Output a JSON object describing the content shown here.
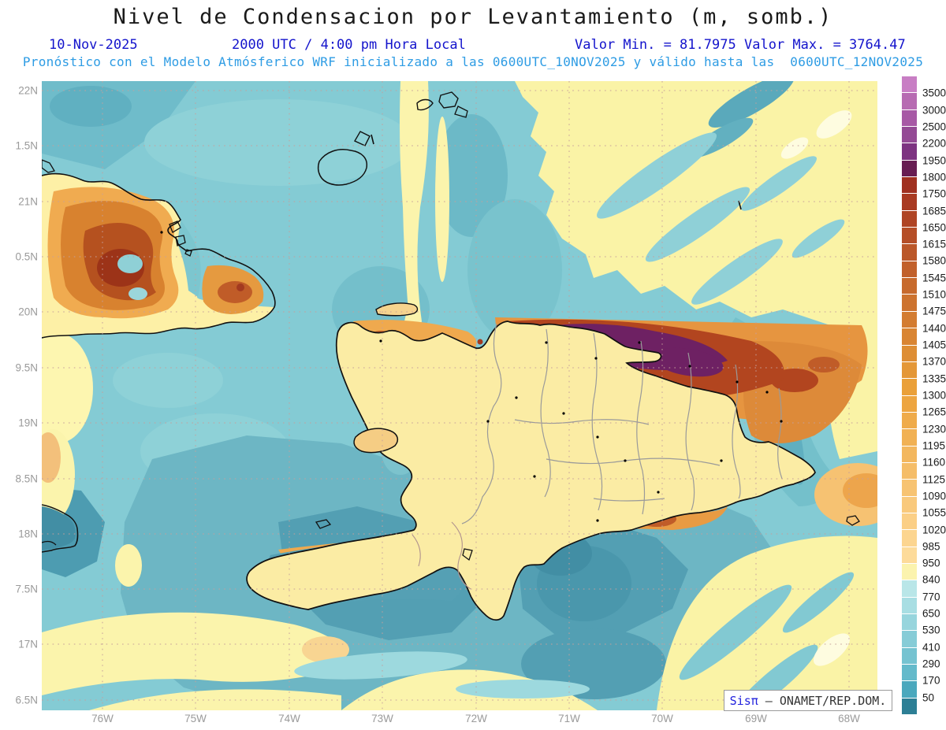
{
  "header": {
    "title": "Nivel de Condensacion por Levantamiento (m, somb.)",
    "date": "10-Nov-2025",
    "valid_time": "2000 UTC / 4:00 pm Hora Local",
    "min_label": "Valor Min. = 81.7975",
    "max_label": "Valor Max. = 3764.47",
    "model_line": "Pronóstico con el Modelo Atmósferico WRF inicializado a las 0600UTC_10NOV2025 y válido hasta las  0600UTC_12NOV2025"
  },
  "axes": {
    "lat_labels": [
      "22N",
      "1.5N",
      "21N",
      "0.5N",
      "20N",
      "9.5N",
      "19N",
      "8.5N",
      "18N",
      "7.5N",
      "17N",
      "6.5N"
    ],
    "lon_labels": [
      "76W",
      "75W",
      "74W",
      "73W",
      "72W",
      "71W",
      "70W",
      "69W",
      "68W"
    ]
  },
  "colorbar": {
    "tick_labels": [
      "3500",
      "3000",
      "2500",
      "2200",
      "1950",
      "1800",
      "1750",
      "1685",
      "1650",
      "1615",
      "1580",
      "1545",
      "1510",
      "1475",
      "1440",
      "1405",
      "1370",
      "1335",
      "1300",
      "1265",
      "1230",
      "1195",
      "1160",
      "1125",
      "1090",
      "1055",
      "1020",
      "985",
      "950",
      "840",
      "770",
      "650",
      "530",
      "410",
      "290",
      "170",
      "50"
    ],
    "colors_top_to_bottom": [
      "#c87ec4",
      "#b76bb2",
      "#a759a5",
      "#944a95",
      "#7d3381",
      "#671d52",
      "#a03020",
      "#a93a22",
      "#af4424",
      "#b54e27",
      "#bb5729",
      "#c1602b",
      "#c76a2d",
      "#cd732f",
      "#d37c31",
      "#d98533",
      "#de8e35",
      "#e49737",
      "#eaa039",
      "#eda540",
      "#efab4a",
      "#f1b154",
      "#f3b75e",
      "#f5bd68",
      "#f7c372",
      "#f9c97c",
      "#fbcf86",
      "#fcd590",
      "#fddb9a",
      "#fbf3ae",
      "#b9e6e8",
      "#a8dee3",
      "#97d5dd",
      "#86ccd7",
      "#75c3d1",
      "#64bacb",
      "#4aa8bd",
      "#2d7f95"
    ]
  },
  "watermark": {
    "brand": "Sisπ",
    "separator": " – ",
    "org": "ONAMET/REP.DOM."
  },
  "chart_data": {
    "type": "heatmap",
    "title": "Nivel de Condensacion por Levantamiento (m, somb.)",
    "units": "m",
    "valor_min": 81.7975,
    "valor_max": 3764.47,
    "contour_levels": [
      50,
      170,
      290,
      410,
      530,
      650,
      770,
      840,
      950,
      985,
      1020,
      1055,
      1090,
      1125,
      1160,
      1195,
      1230,
      1265,
      1300,
      1335,
      1370,
      1405,
      1440,
      1475,
      1510,
      1545,
      1580,
      1615,
      1650,
      1685,
      1750,
      1800,
      1950,
      2200,
      2500,
      3000,
      3500
    ],
    "x_axis": {
      "label_units": "degrees West",
      "ticks": [
        76,
        75,
        74,
        73,
        72,
        71,
        70,
        69,
        68
      ]
    },
    "y_axis": {
      "label_units": "degrees North",
      "ticks": [
        22,
        21.5,
        21,
        20.5,
        20,
        19.5,
        19,
        18.5,
        18,
        17.5,
        17,
        16.5
      ]
    },
    "legend_position": "right",
    "grid": "dotted"
  }
}
